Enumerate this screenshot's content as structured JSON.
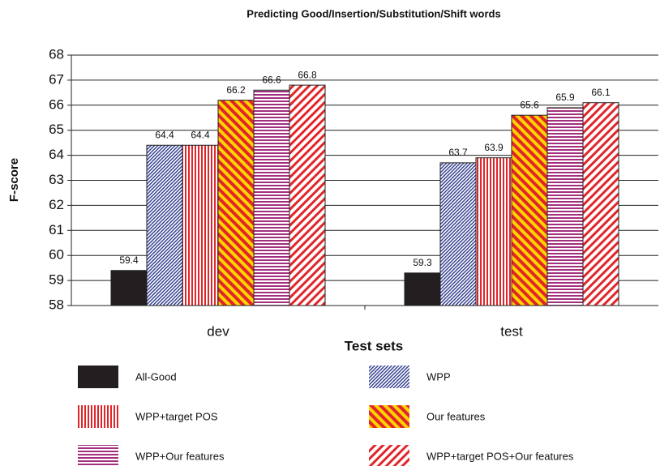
{
  "chart_data": {
    "type": "bar",
    "title": "Predicting Good/Insertion/Substitution/Shift words",
    "y_label": "F-score",
    "x_label": "Test sets",
    "categories": [
      "dev",
      "test"
    ],
    "series": [
      {
        "name": "All-Good",
        "color": "#231f20",
        "pattern": "solid",
        "values": [
          59.4,
          59.3
        ]
      },
      {
        "name": "WPP",
        "color": "#2e3a8c",
        "pattern": "diag-up",
        "values": [
          64.4,
          63.7
        ]
      },
      {
        "name": "WPP+target POS",
        "color": "#e0262a",
        "pattern": "vertical",
        "values": [
          64.4,
          63.9
        ]
      },
      {
        "name": "Our features",
        "color": "#e0262a",
        "background": "#ffd400",
        "pattern": "diag-down",
        "values": [
          66.2,
          65.6
        ]
      },
      {
        "name": "WPP+Our features",
        "color": "#a3307f",
        "pattern": "horizontal",
        "values": [
          66.6,
          65.9
        ]
      },
      {
        "name": "WPP+target POS+Our features",
        "color": "#e0262a",
        "pattern": "diag-up-wide",
        "values": [
          66.8,
          66.1
        ]
      }
    ],
    "ylim": [
      58,
      68
    ],
    "yticks": [
      58,
      59,
      60,
      61,
      62,
      63,
      64,
      65,
      66,
      67,
      68
    ]
  }
}
